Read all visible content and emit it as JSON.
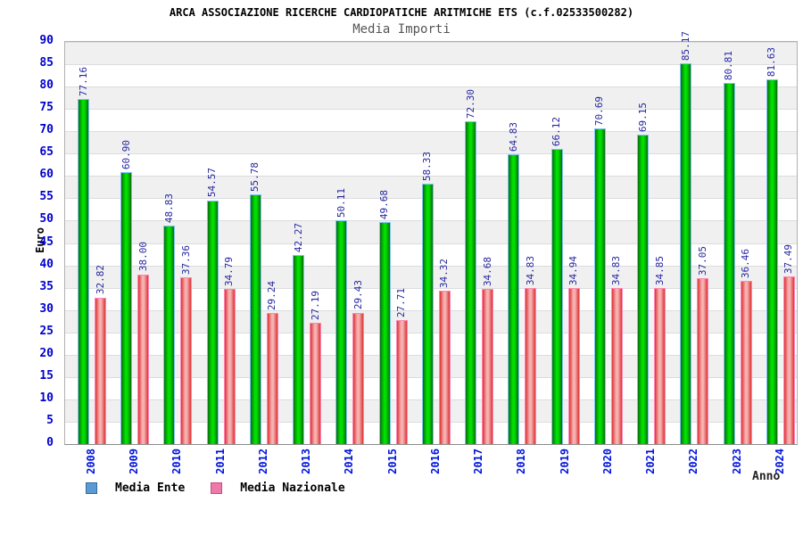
{
  "header": {
    "title": "ARCA ASSOCIAZIONE RICERCHE CARDIOPATICHE ARITMICHE ETS (c.f.02533500282)",
    "subtitle": "Media Importi"
  },
  "chart_data": {
    "type": "bar",
    "title": "Media Importi",
    "xlabel": "Anno",
    "ylabel": "Euro",
    "ylim": [
      0,
      90
    ],
    "yticks": [
      0,
      5,
      10,
      15,
      20,
      25,
      30,
      35,
      40,
      45,
      50,
      55,
      60,
      65,
      70,
      75,
      80,
      85,
      90
    ],
    "grid": "horizontal-bands-alternating",
    "legend_position": "bottom-left",
    "value_labels": "rotated-90-above-bars",
    "categories": [
      "2008",
      "2009",
      "2010",
      "2011",
      "2012",
      "2013",
      "2014",
      "2015",
      "2016",
      "2017",
      "2018",
      "2019",
      "2020",
      "2021",
      "2022",
      "2023",
      "2024"
    ],
    "series": [
      {
        "name": "Media Ente",
        "bar_color": "#00c800",
        "bar_border_color": "#7fc4f2",
        "values": [
          77.16,
          60.9,
          48.83,
          54.57,
          55.78,
          42.27,
          50.11,
          49.68,
          58.33,
          72.3,
          64.83,
          66.12,
          70.69,
          69.15,
          85.17,
          80.81,
          81.63
        ]
      },
      {
        "name": "Media Nazionale",
        "bar_color": "#e66a6a",
        "bar_border_color": "#ff86b5",
        "values": [
          32.82,
          38.0,
          37.36,
          34.79,
          29.24,
          27.19,
          29.43,
          27.71,
          34.32,
          34.68,
          34.83,
          34.94,
          34.83,
          34.85,
          37.05,
          36.46,
          37.49
        ]
      }
    ]
  },
  "legend": {
    "items": [
      {
        "label": "Media Ente",
        "swatch": "#5b9bd5",
        "swatch_border": "#35699c"
      },
      {
        "label": "Media Nazionale",
        "swatch": "#ee79ab",
        "swatch_border": "#c24e80"
      }
    ]
  },
  "colors": {
    "tick_label": "#0000cd",
    "value_label": "#2626a0",
    "band_gray": "#f0f0f0",
    "band_white": "#ffffff",
    "plot_border": "#b0b0b0"
  }
}
